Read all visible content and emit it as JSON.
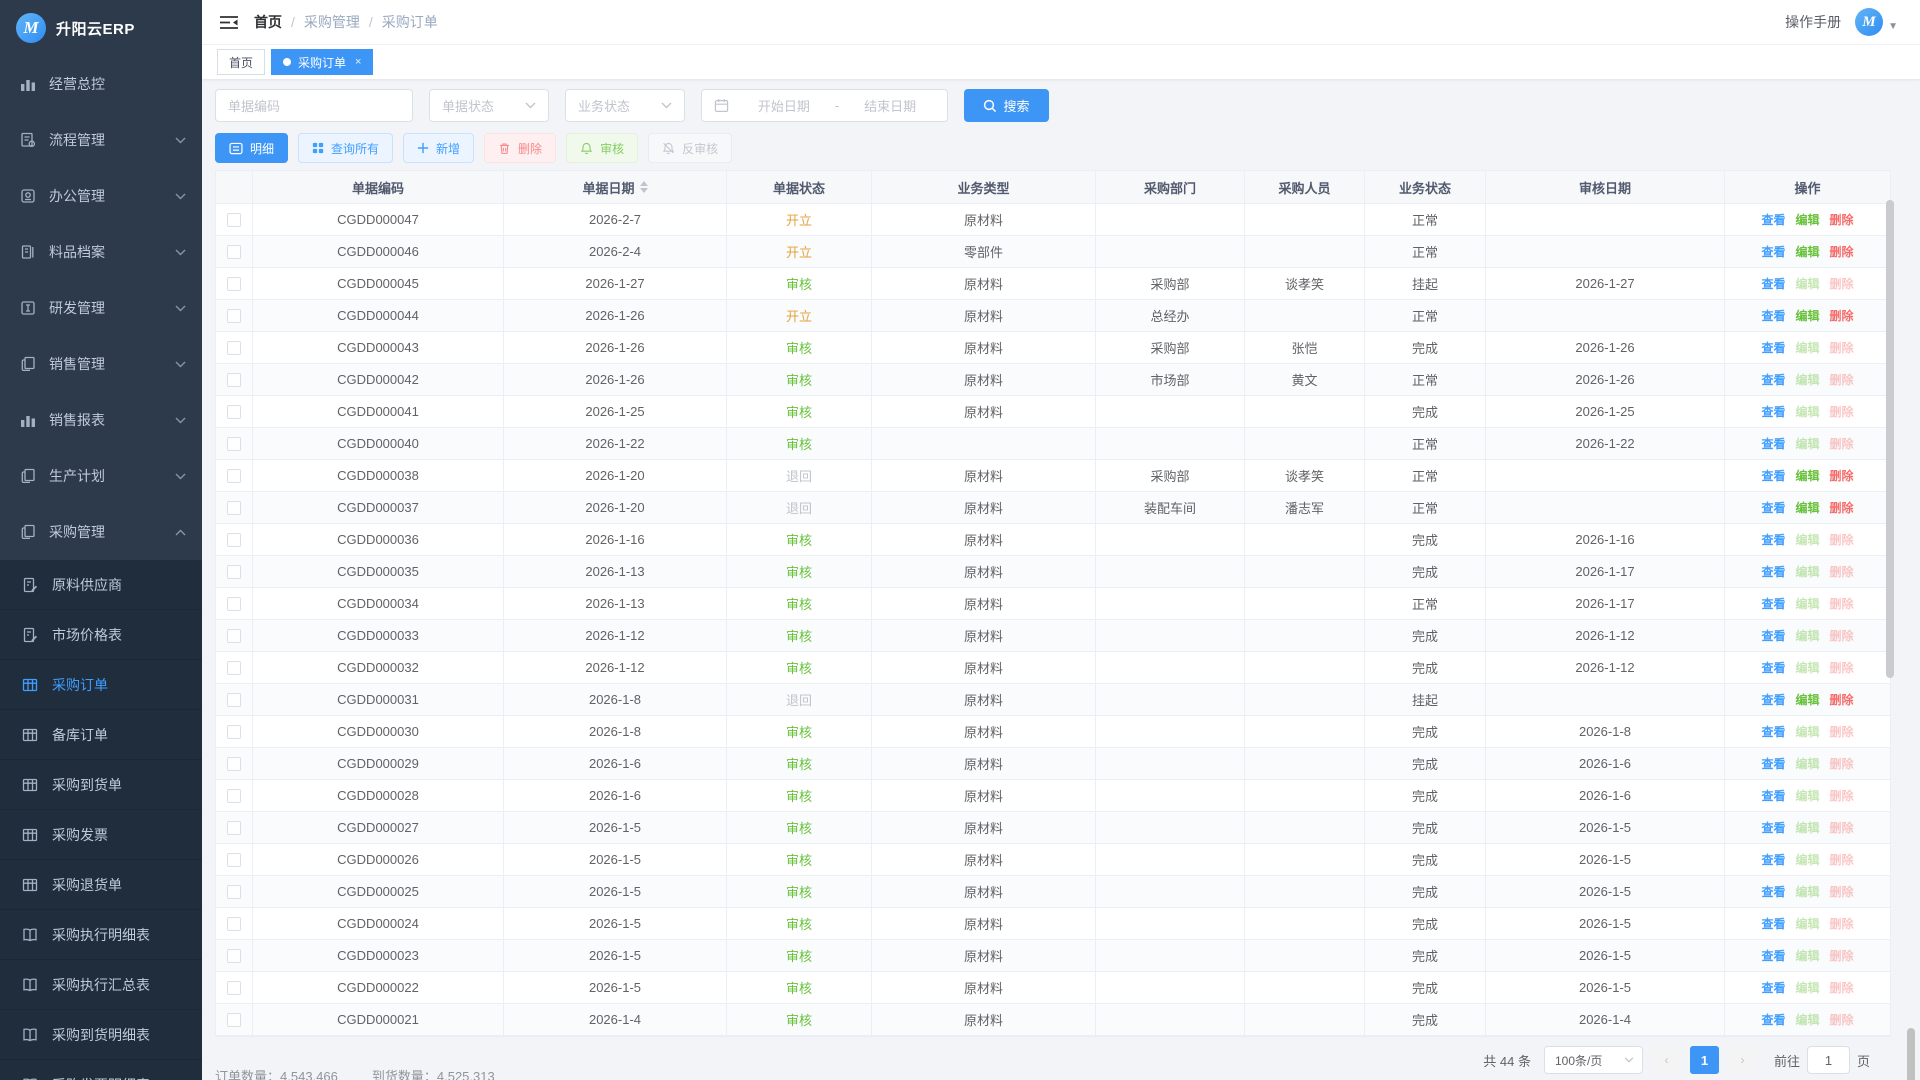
{
  "app": {
    "name": "升阳云ERP",
    "logo_letter": "M"
  },
  "sidebar": {
    "items": [
      {
        "label": "经营总控",
        "icon": "bar-chart",
        "expandable": false
      },
      {
        "label": "流程管理",
        "icon": "process-doc",
        "expandable": true
      },
      {
        "label": "办公管理",
        "icon": "office",
        "expandable": true
      },
      {
        "label": "料品档案",
        "icon": "materials",
        "expandable": true
      },
      {
        "label": "研发管理",
        "icon": "rd",
        "expandable": true
      },
      {
        "label": "销售管理",
        "icon": "copy-doc",
        "expandable": true
      },
      {
        "label": "销售报表",
        "icon": "bar-chart",
        "expandable": true
      },
      {
        "label": "生产计划",
        "icon": "copy-doc",
        "expandable": true
      },
      {
        "label": "采购管理",
        "icon": "copy-doc",
        "expandable": true,
        "expanded": true
      }
    ],
    "submenu": [
      {
        "label": "原料供应商",
        "icon": "doc-edit"
      },
      {
        "label": "市场价格表",
        "icon": "doc-edit"
      },
      {
        "label": "采购订单",
        "icon": "grid",
        "active": true
      },
      {
        "label": "备库订单",
        "icon": "grid"
      },
      {
        "label": "采购到货单",
        "icon": "grid"
      },
      {
        "label": "采购发票",
        "icon": "grid"
      },
      {
        "label": "采购退货单",
        "icon": "grid"
      },
      {
        "label": "采购执行明细表",
        "icon": "book"
      },
      {
        "label": "采购执行汇总表",
        "icon": "book"
      },
      {
        "label": "采购到货明细表",
        "icon": "book"
      },
      {
        "label": "采购发票明细表",
        "icon": "book"
      }
    ]
  },
  "topbar": {
    "breadcrumb": {
      "home": "首页",
      "level1": "采购管理",
      "level2": "采购订单"
    },
    "manual_label": "操作手册",
    "avatar_letter": "M"
  },
  "tabs": [
    {
      "label": "首页",
      "active": false
    },
    {
      "label": "采购订单",
      "active": true,
      "closable": true
    }
  ],
  "filters": {
    "code_placeholder": "单据编码",
    "doc_status_placeholder": "单据状态",
    "biz_status_placeholder": "业务状态",
    "start_date_placeholder": "开始日期",
    "range_separator": "-",
    "end_date_placeholder": "结束日期",
    "search_label": "搜索"
  },
  "toolbar": {
    "detail": "明细",
    "query_all": "查询所有",
    "add": "新增",
    "delete": "删除",
    "audit": "审核",
    "unaudit": "反审核"
  },
  "icons": {
    "search": "magnifier",
    "calendar": "calendar",
    "fold": "collapse-menu",
    "sort": "caret-up-down",
    "detail": "panel",
    "query_all": "grid-squares",
    "add": "plus",
    "delete": "trash",
    "audit": "bell",
    "unaudit": "bell-off"
  },
  "table": {
    "columns": [
      "单据编码",
      "单据日期",
      "单据状态",
      "业务类型",
      "采购部门",
      "采购人员",
      "业务状态",
      "审核日期",
      "操作"
    ],
    "actions": {
      "view": "查看",
      "edit": "编辑",
      "del": "删除"
    },
    "rows": [
      {
        "code": "CGDD000047",
        "date": "2026-2-7",
        "status": "开立",
        "type": "原材料",
        "dept": "",
        "person": "",
        "biz": "正常",
        "audit": "",
        "enabled": true
      },
      {
        "code": "CGDD000046",
        "date": "2026-2-4",
        "status": "开立",
        "type": "零部件",
        "dept": "",
        "person": "",
        "biz": "正常",
        "audit": "",
        "enabled": true
      },
      {
        "code": "CGDD000045",
        "date": "2026-1-27",
        "status": "审核",
        "type": "原材料",
        "dept": "采购部",
        "person": "谈孝笑",
        "biz": "挂起",
        "audit": "2026-1-27",
        "enabled": false
      },
      {
        "code": "CGDD000044",
        "date": "2026-1-26",
        "status": "开立",
        "type": "原材料",
        "dept": "总经办",
        "person": "",
        "biz": "正常",
        "audit": "",
        "enabled": true
      },
      {
        "code": "CGDD000043",
        "date": "2026-1-26",
        "status": "审核",
        "type": "原材料",
        "dept": "采购部",
        "person": "张恺",
        "biz": "完成",
        "audit": "2026-1-26",
        "enabled": false
      },
      {
        "code": "CGDD000042",
        "date": "2026-1-26",
        "status": "审核",
        "type": "原材料",
        "dept": "市场部",
        "person": "黄文",
        "biz": "正常",
        "audit": "2026-1-26",
        "enabled": false
      },
      {
        "code": "CGDD000041",
        "date": "2026-1-25",
        "status": "审核",
        "type": "原材料",
        "dept": "",
        "person": "",
        "biz": "完成",
        "audit": "2026-1-25",
        "enabled": false
      },
      {
        "code": "CGDD000040",
        "date": "2026-1-22",
        "status": "审核",
        "type": "",
        "dept": "",
        "person": "",
        "biz": "正常",
        "audit": "2026-1-22",
        "enabled": false
      },
      {
        "code": "CGDD000038",
        "date": "2026-1-20",
        "status": "退回",
        "type": "原材料",
        "dept": "采购部",
        "person": "谈孝笑",
        "biz": "正常",
        "audit": "",
        "enabled": true
      },
      {
        "code": "CGDD000037",
        "date": "2026-1-20",
        "status": "退回",
        "type": "原材料",
        "dept": "装配车间",
        "person": "潘志军",
        "biz": "正常",
        "audit": "",
        "enabled": true
      },
      {
        "code": "CGDD000036",
        "date": "2026-1-16",
        "status": "审核",
        "type": "原材料",
        "dept": "",
        "person": "",
        "biz": "完成",
        "audit": "2026-1-16",
        "enabled": false
      },
      {
        "code": "CGDD000035",
        "date": "2026-1-13",
        "status": "审核",
        "type": "原材料",
        "dept": "",
        "person": "",
        "biz": "完成",
        "audit": "2026-1-17",
        "enabled": false
      },
      {
        "code": "CGDD000034",
        "date": "2026-1-13",
        "status": "审核",
        "type": "原材料",
        "dept": "",
        "person": "",
        "biz": "正常",
        "audit": "2026-1-17",
        "enabled": false
      },
      {
        "code": "CGDD000033",
        "date": "2026-1-12",
        "status": "审核",
        "type": "原材料",
        "dept": "",
        "person": "",
        "biz": "完成",
        "audit": "2026-1-12",
        "enabled": false
      },
      {
        "code": "CGDD000032",
        "date": "2026-1-12",
        "status": "审核",
        "type": "原材料",
        "dept": "",
        "person": "",
        "biz": "完成",
        "audit": "2026-1-12",
        "enabled": false
      },
      {
        "code": "CGDD000031",
        "date": "2026-1-8",
        "status": "退回",
        "type": "原材料",
        "dept": "",
        "person": "",
        "biz": "挂起",
        "audit": "",
        "enabled": true
      },
      {
        "code": "CGDD000030",
        "date": "2026-1-8",
        "status": "审核",
        "type": "原材料",
        "dept": "",
        "person": "",
        "biz": "完成",
        "audit": "2026-1-8",
        "enabled": false
      },
      {
        "code": "CGDD000029",
        "date": "2026-1-6",
        "status": "审核",
        "type": "原材料",
        "dept": "",
        "person": "",
        "biz": "完成",
        "audit": "2026-1-6",
        "enabled": false
      },
      {
        "code": "CGDD000028",
        "date": "2026-1-6",
        "status": "审核",
        "type": "原材料",
        "dept": "",
        "person": "",
        "biz": "完成",
        "audit": "2026-1-6",
        "enabled": false
      },
      {
        "code": "CGDD000027",
        "date": "2026-1-5",
        "status": "审核",
        "type": "原材料",
        "dept": "",
        "person": "",
        "biz": "完成",
        "audit": "2026-1-5",
        "enabled": false
      },
      {
        "code": "CGDD000026",
        "date": "2026-1-5",
        "status": "审核",
        "type": "原材料",
        "dept": "",
        "person": "",
        "biz": "完成",
        "audit": "2026-1-5",
        "enabled": false
      },
      {
        "code": "CGDD000025",
        "date": "2026-1-5",
        "status": "审核",
        "type": "原材料",
        "dept": "",
        "person": "",
        "biz": "完成",
        "audit": "2026-1-5",
        "enabled": false
      },
      {
        "code": "CGDD000024",
        "date": "2026-1-5",
        "status": "审核",
        "type": "原材料",
        "dept": "",
        "person": "",
        "biz": "完成",
        "audit": "2026-1-5",
        "enabled": false
      },
      {
        "code": "CGDD000023",
        "date": "2026-1-5",
        "status": "审核",
        "type": "原材料",
        "dept": "",
        "person": "",
        "biz": "完成",
        "audit": "2026-1-5",
        "enabled": false
      },
      {
        "code": "CGDD000022",
        "date": "2026-1-5",
        "status": "审核",
        "type": "原材料",
        "dept": "",
        "person": "",
        "biz": "完成",
        "audit": "2026-1-5",
        "enabled": false
      },
      {
        "code": "CGDD000021",
        "date": "2026-1-4",
        "status": "审核",
        "type": "原材料",
        "dept": "",
        "person": "",
        "biz": "完成",
        "audit": "2026-1-4",
        "enabled": false
      }
    ],
    "status_colors": {
      "开立": "#e6a23c",
      "审核": "#67c23a",
      "退回": "#c0c4cc"
    }
  },
  "pagination": {
    "total_label": "共 44 条",
    "page_size": "100条/页",
    "prev": "‹",
    "current_page": "1",
    "next": "›",
    "goto_label": "前往",
    "goto_value": "1",
    "page_label": "页"
  },
  "footer_stats": {
    "order_qty_label": "订单数量：",
    "order_qty": "4,543,466",
    "arrival_qty_label": "到货数量：",
    "arrival_qty": "4,525,313"
  },
  "colors": {
    "primary": "#3d95f5",
    "success": "#67c23a",
    "danger": "#f56c6c",
    "warning": "#e6a23c",
    "sidebar": "#2d3a4b",
    "submenu": "#1f2d3d"
  }
}
